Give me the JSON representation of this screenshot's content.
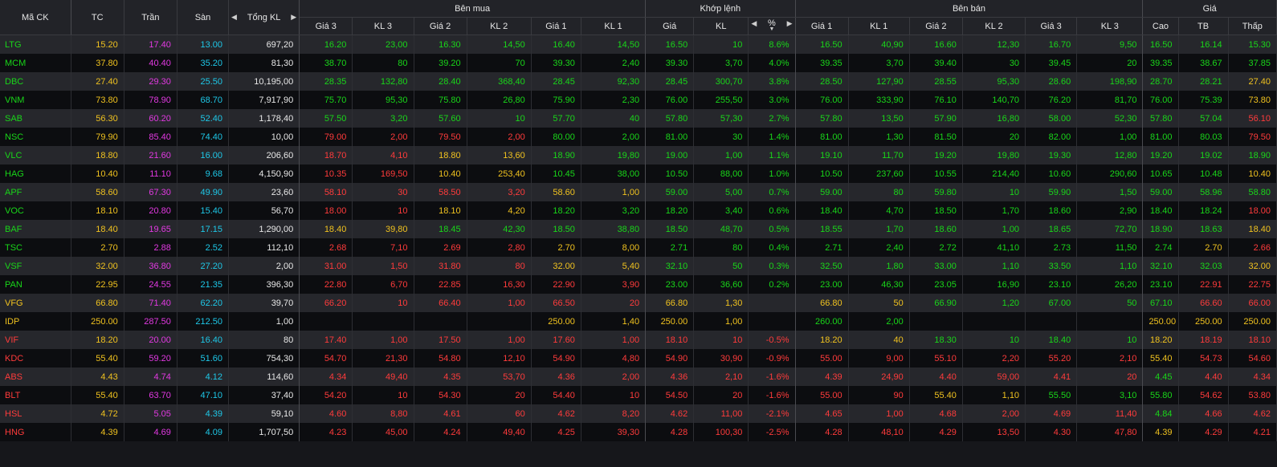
{
  "colors": {
    "up": "#19d619",
    "down": "#ff3b3b",
    "ref": "#f0c21f",
    "ceil": "#e239e2",
    "floor": "#1ec8e8",
    "white": "#e8e8e8"
  },
  "headers": {
    "sym": "Mã CK",
    "tc": "TC",
    "tran": "Trần",
    "san": "Sàn",
    "tong_kl": "Tổng KL",
    "ben_mua": "Bên mua",
    "khop_lenh": "Khớp lệnh",
    "ben_ban": "Bên bán",
    "gia": "Giá",
    "gia3": "Giá 3",
    "kl3": "KL 3",
    "gia2": "Giá 2",
    "kl2": "KL 2",
    "gia1": "Giá 1",
    "kl1": "KL 1",
    "m_gia": "Giá",
    "m_kl": "KL",
    "pct": "%",
    "cao": "Cao",
    "tb": "TB",
    "thap": "Thấp"
  },
  "icons": {
    "left": "caret-left-icon",
    "right": "caret-right-icon",
    "sort": "sort-down-icon"
  },
  "rows": [
    {
      "sym": "LTG",
      "tc": "15.20",
      "tran": "17.40",
      "san": "13.00",
      "tong": "697,20",
      "b3p": "16.20",
      "b3v": "23,00",
      "b2p": "16.30",
      "b2v": "14,50",
      "b1p": "16.40",
      "b1v": "14,50",
      "mp": "16.50",
      "mv": "10",
      "pct": "8.6%",
      "s1p": "16.50",
      "s1v": "40,90",
      "s2p": "16.60",
      "s2v": "12,30",
      "s3p": "16.70",
      "s3v": "9,50",
      "hi": "16.50",
      "avg": "16.14",
      "lo": "15.30"
    },
    {
      "sym": "MCM",
      "tc": "37.80",
      "tran": "40.40",
      "san": "35.20",
      "tong": "81,30",
      "b3p": "38.70",
      "b3v": "80",
      "b2p": "39.20",
      "b2v": "70",
      "b1p": "39.30",
      "b1v": "2,40",
      "mp": "39.30",
      "mv": "3,70",
      "pct": "4.0%",
      "s1p": "39.35",
      "s1v": "3,70",
      "s2p": "39.40",
      "s2v": "30",
      "s3p": "39.45",
      "s3v": "20",
      "hi": "39.35",
      "avg": "38.67",
      "lo": "37.85"
    },
    {
      "sym": "DBC",
      "tc": "27.40",
      "tran": "29.30",
      "san": "25.50",
      "tong": "10,195,00",
      "b3p": "28.35",
      "b3v": "132,80",
      "b2p": "28.40",
      "b2v": "368,40",
      "b1p": "28.45",
      "b1v": "92,30",
      "mp": "28.45",
      "mv": "300,70",
      "pct": "3.8%",
      "s1p": "28.50",
      "s1v": "127,90",
      "s2p": "28.55",
      "s2v": "95,30",
      "s3p": "28.60",
      "s3v": "198,90",
      "hi": "28.70",
      "avg": "28.21",
      "lo": "27.40"
    },
    {
      "sym": "VNM",
      "tc": "73.80",
      "tran": "78.90",
      "san": "68.70",
      "tong": "7,917,90",
      "b3p": "75.70",
      "b3v": "95,30",
      "b2p": "75.80",
      "b2v": "26,80",
      "b1p": "75.90",
      "b1v": "2,30",
      "mp": "76.00",
      "mv": "255,50",
      "pct": "3.0%",
      "s1p": "76.00",
      "s1v": "333,90",
      "s2p": "76.10",
      "s2v": "140,70",
      "s3p": "76.20",
      "s3v": "81,70",
      "hi": "76.00",
      "avg": "75.39",
      "lo": "73.80"
    },
    {
      "sym": "SAB",
      "tc": "56.30",
      "tran": "60.20",
      "san": "52.40",
      "tong": "1,178,40",
      "b3p": "57.50",
      "b3v": "3,20",
      "b2p": "57.60",
      "b2v": "10",
      "b1p": "57.70",
      "b1v": "40",
      "mp": "57.80",
      "mv": "57,30",
      "pct": "2.7%",
      "s1p": "57.80",
      "s1v": "13,50",
      "s2p": "57.90",
      "s2v": "16,80",
      "s3p": "58.00",
      "s3v": "52,30",
      "hi": "57.80",
      "avg": "57.04",
      "lo": "56.10"
    },
    {
      "sym": "NSC",
      "tc": "79.90",
      "tran": "85.40",
      "san": "74.40",
      "tong": "10,00",
      "b3p": "79.00",
      "b3v": "2,00",
      "b2p": "79.50",
      "b2v": "2,00",
      "b1p": "80.00",
      "b1v": "2,00",
      "mp": "81.00",
      "mv": "30",
      "pct": "1.4%",
      "s1p": "81.00",
      "s1v": "1,30",
      "s2p": "81.50",
      "s2v": "20",
      "s3p": "82.00",
      "s3v": "1,00",
      "hi": "81.00",
      "avg": "80.03",
      "lo": "79.50"
    },
    {
      "sym": "VLC",
      "tc": "18.80",
      "tran": "21.60",
      "san": "16.00",
      "tong": "206,60",
      "b3p": "18.70",
      "b3v": "4,10",
      "b2p": "18.80",
      "b2v": "13,60",
      "b1p": "18.90",
      "b1v": "19,80",
      "mp": "19.00",
      "mv": "1,00",
      "pct": "1.1%",
      "s1p": "19.10",
      "s1v": "11,70",
      "s2p": "19.20",
      "s2v": "19,80",
      "s3p": "19.30",
      "s3v": "12,80",
      "hi": "19.20",
      "avg": "19.02",
      "lo": "18.90"
    },
    {
      "sym": "HAG",
      "tc": "10.40",
      "tran": "11.10",
      "san": "9.68",
      "tong": "4,150,90",
      "b3p": "10.35",
      "b3v": "169,50",
      "b2p": "10.40",
      "b2v": "253,40",
      "b1p": "10.45",
      "b1v": "38,00",
      "mp": "10.50",
      "mv": "88,00",
      "pct": "1.0%",
      "s1p": "10.50",
      "s1v": "237,60",
      "s2p": "10.55",
      "s2v": "214,40",
      "s3p": "10.60",
      "s3v": "290,60",
      "hi": "10.65",
      "avg": "10.48",
      "lo": "10.40"
    },
    {
      "sym": "APF",
      "tc": "58.60",
      "tran": "67.30",
      "san": "49.90",
      "tong": "23,60",
      "b3p": "58.10",
      "b3v": "30",
      "b2p": "58.50",
      "b2v": "3,20",
      "b1p": "58.60",
      "b1v": "1,00",
      "mp": "59.00",
      "mv": "5,00",
      "pct": "0.7%",
      "s1p": "59.00",
      "s1v": "80",
      "s2p": "59.80",
      "s2v": "10",
      "s3p": "59.90",
      "s3v": "1,50",
      "hi": "59.00",
      "avg": "58.96",
      "lo": "58.80"
    },
    {
      "sym": "VOC",
      "tc": "18.10",
      "tran": "20.80",
      "san": "15.40",
      "tong": "56,70",
      "b3p": "18.00",
      "b3v": "10",
      "b2p": "18.10",
      "b2v": "4,20",
      "b1p": "18.20",
      "b1v": "3,20",
      "mp": "18.20",
      "mv": "3,40",
      "pct": "0.6%",
      "s1p": "18.40",
      "s1v": "4,70",
      "s2p": "18.50",
      "s2v": "1,70",
      "s3p": "18.60",
      "s3v": "2,90",
      "hi": "18.40",
      "avg": "18.24",
      "lo": "18.00"
    },
    {
      "sym": "BAF",
      "tc": "18.40",
      "tran": "19.65",
      "san": "17.15",
      "tong": "1,290,00",
      "b3p": "18.40",
      "b3v": "39,80",
      "b2p": "18.45",
      "b2v": "42,30",
      "b1p": "18.50",
      "b1v": "38,80",
      "mp": "18.50",
      "mv": "48,70",
      "pct": "0.5%",
      "s1p": "18.55",
      "s1v": "1,70",
      "s2p": "18.60",
      "s2v": "1,00",
      "s3p": "18.65",
      "s3v": "72,70",
      "hi": "18.90",
      "avg": "18.63",
      "lo": "18.40"
    },
    {
      "sym": "TSC",
      "tc": "2.70",
      "tran": "2.88",
      "san": "2.52",
      "tong": "112,10",
      "b3p": "2.68",
      "b3v": "7,10",
      "b2p": "2.69",
      "b2v": "2,80",
      "b1p": "2.70",
      "b1v": "8,00",
      "mp": "2.71",
      "mv": "80",
      "pct": "0.4%",
      "s1p": "2.71",
      "s1v": "2,40",
      "s2p": "2.72",
      "s2v": "41,10",
      "s3p": "2.73",
      "s3v": "11,50",
      "hi": "2.74",
      "avg": "2.70",
      "lo": "2.66"
    },
    {
      "sym": "VSF",
      "tc": "32.00",
      "tran": "36.80",
      "san": "27.20",
      "tong": "2,00",
      "b3p": "31.00",
      "b3v": "1,50",
      "b2p": "31.80",
      "b2v": "80",
      "b1p": "32.00",
      "b1v": "5,40",
      "mp": "32.10",
      "mv": "50",
      "pct": "0.3%",
      "s1p": "32.50",
      "s1v": "1,80",
      "s2p": "33.00",
      "s2v": "1,10",
      "s3p": "33.50",
      "s3v": "1,10",
      "hi": "32.10",
      "avg": "32.03",
      "lo": "32.00"
    },
    {
      "sym": "PAN",
      "tc": "22.95",
      "tran": "24.55",
      "san": "21.35",
      "tong": "396,30",
      "b3p": "22.80",
      "b3v": "6,70",
      "b2p": "22.85",
      "b2v": "16,30",
      "b1p": "22.90",
      "b1v": "3,90",
      "mp": "23.00",
      "mv": "36,60",
      "pct": "0.2%",
      "s1p": "23.00",
      "s1v": "46,30",
      "s2p": "23.05",
      "s2v": "16,90",
      "s3p": "23.10",
      "s3v": "26,20",
      "hi": "23.10",
      "avg": "22.91",
      "lo": "22.75"
    },
    {
      "sym": "VFG",
      "tc": "66.80",
      "tran": "71.40",
      "san": "62.20",
      "tong": "39,70",
      "b3p": "66.20",
      "b3v": "10",
      "b2p": "66.40",
      "b2v": "1,00",
      "b1p": "66.50",
      "b1v": "20",
      "mp": "66.80",
      "mv": "1,30",
      "pct": "",
      "s1p": "66.80",
      "s1v": "50",
      "s2p": "66.90",
      "s2v": "1,20",
      "s3p": "67.00",
      "s3v": "50",
      "hi": "67.10",
      "avg": "66.60",
      "lo": "66.00"
    },
    {
      "sym": "IDP",
      "tc": "250.00",
      "tran": "287.50",
      "san": "212.50",
      "tong": "1,00",
      "b3p": "",
      "b3v": "",
      "b2p": "",
      "b2v": "",
      "b1p": "250.00",
      "b1v": "1,40",
      "mp": "250.00",
      "mv": "1,00",
      "pct": "",
      "s1p": "260.00",
      "s1v": "2,00",
      "s2p": "",
      "s2v": "",
      "s3p": "",
      "s3v": "",
      "hi": "250.00",
      "avg": "250.00",
      "lo": "250.00"
    },
    {
      "sym": "VIF",
      "tc": "18.20",
      "tran": "20.00",
      "san": "16.40",
      "tong": "80",
      "b3p": "17.40",
      "b3v": "1,00",
      "b2p": "17.50",
      "b2v": "1,00",
      "b1p": "17.60",
      "b1v": "1,00",
      "mp": "18.10",
      "mv": "10",
      "pct": "-0.5%",
      "s1p": "18.20",
      "s1v": "40",
      "s2p": "18.30",
      "s2v": "10",
      "s3p": "18.40",
      "s3v": "10",
      "hi": "18.20",
      "avg": "18.19",
      "lo": "18.10"
    },
    {
      "sym": "KDC",
      "tc": "55.40",
      "tran": "59.20",
      "san": "51.60",
      "tong": "754,30",
      "b3p": "54.70",
      "b3v": "21,30",
      "b2p": "54.80",
      "b2v": "12,10",
      "b1p": "54.90",
      "b1v": "4,80",
      "mp": "54.90",
      "mv": "30,90",
      "pct": "-0.9%",
      "s1p": "55.00",
      "s1v": "9,00",
      "s2p": "55.10",
      "s2v": "2,20",
      "s3p": "55.20",
      "s3v": "2,10",
      "hi": "55.40",
      "avg": "54.73",
      "lo": "54.60"
    },
    {
      "sym": "ABS",
      "tc": "4.43",
      "tran": "4.74",
      "san": "4.12",
      "tong": "114,60",
      "b3p": "4.34",
      "b3v": "49,40",
      "b2p": "4.35",
      "b2v": "53,70",
      "b1p": "4.36",
      "b1v": "2,00",
      "mp": "4.36",
      "mv": "2,10",
      "pct": "-1.6%",
      "s1p": "4.39",
      "s1v": "24,90",
      "s2p": "4.40",
      "s2v": "59,00",
      "s3p": "4.41",
      "s3v": "20",
      "hi": "4.45",
      "avg": "4.40",
      "lo": "4.34"
    },
    {
      "sym": "BLT",
      "tc": "55.40",
      "tran": "63.70",
      "san": "47.10",
      "tong": "37,40",
      "b3p": "54.20",
      "b3v": "10",
      "b2p": "54.30",
      "b2v": "20",
      "b1p": "54.40",
      "b1v": "10",
      "mp": "54.50",
      "mv": "20",
      "pct": "-1.6%",
      "s1p": "55.00",
      "s1v": "90",
      "s2p": "55.40",
      "s2v": "1,10",
      "s3p": "55.50",
      "s3v": "3,10",
      "hi": "55.80",
      "avg": "54.62",
      "lo": "53.80"
    },
    {
      "sym": "HSL",
      "tc": "4.72",
      "tran": "5.05",
      "san": "4.39",
      "tong": "59,10",
      "b3p": "4.60",
      "b3v": "8,80",
      "b2p": "4.61",
      "b2v": "60",
      "b1p": "4.62",
      "b1v": "8,20",
      "mp": "4.62",
      "mv": "11,00",
      "pct": "-2.1%",
      "s1p": "4.65",
      "s1v": "1,00",
      "s2p": "4.68",
      "s2v": "2,00",
      "s3p": "4.69",
      "s3v": "11,40",
      "hi": "4.84",
      "avg": "4.66",
      "lo": "4.62"
    },
    {
      "sym": "HNG",
      "tc": "4.39",
      "tran": "4.69",
      "san": "4.09",
      "tong": "1,707,50",
      "b3p": "4.23",
      "b3v": "45,00",
      "b2p": "4.24",
      "b2v": "49,40",
      "b1p": "4.25",
      "b1v": "39,30",
      "mp": "4.28",
      "mv": "100,30",
      "pct": "-2.5%",
      "s1p": "4.28",
      "s1v": "48,10",
      "s2p": "4.29",
      "s2v": "13,50",
      "s3p": "4.30",
      "s3v": "47,80",
      "hi": "4.39",
      "avg": "4.29",
      "lo": "4.21"
    }
  ]
}
